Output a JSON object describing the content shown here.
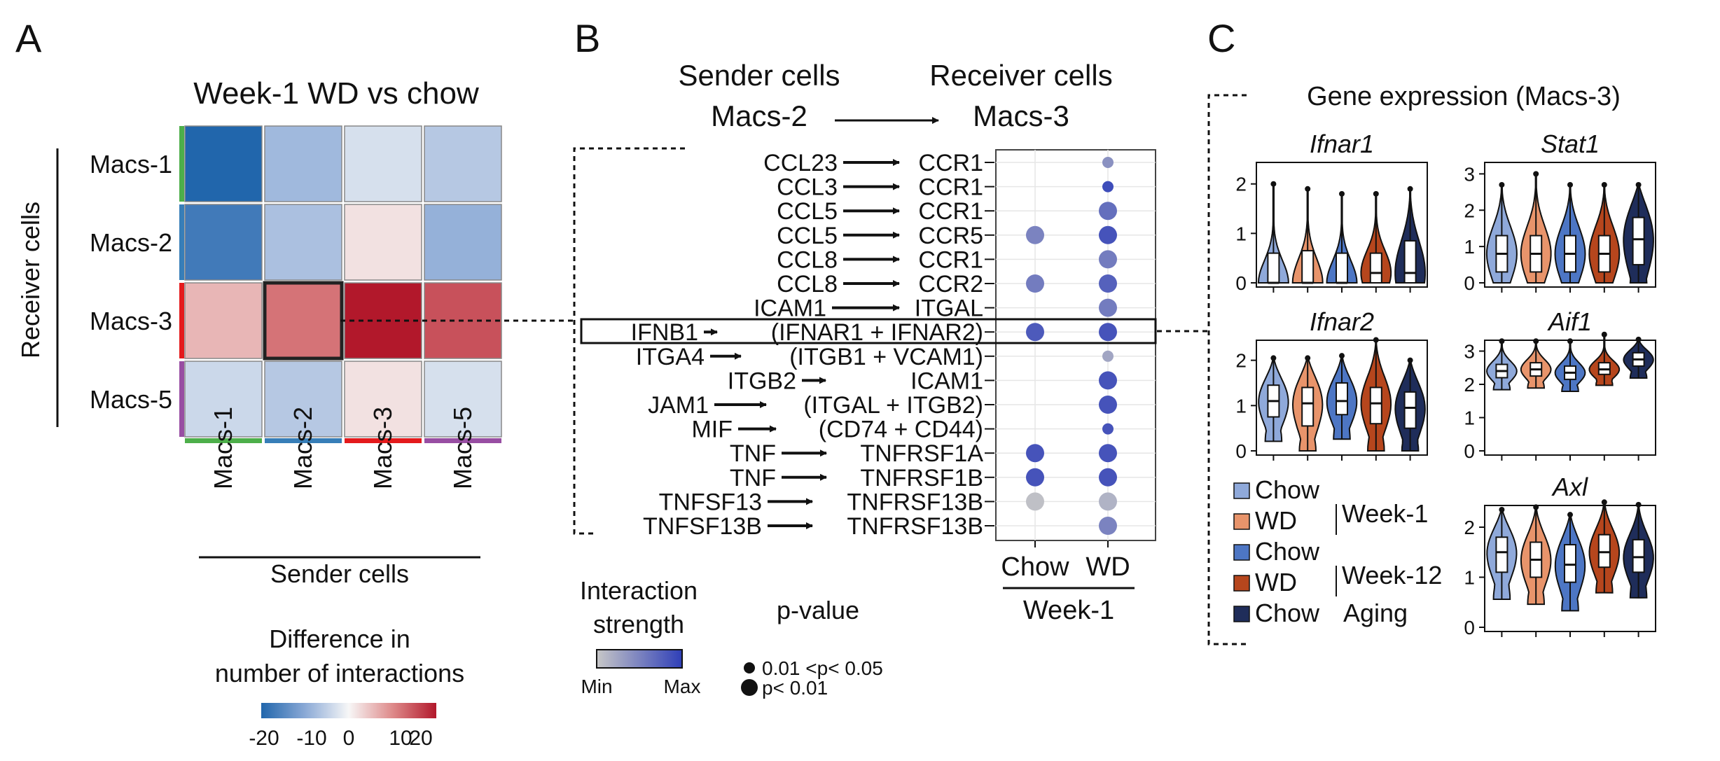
{
  "panel_labels": {
    "a": "A",
    "b": "B",
    "c": "C"
  },
  "colors": {
    "chow_wk1": "#8fa9da",
    "wd_wk1": "#e8946b",
    "chow_wk12": "#4d76c4",
    "wd_wk12": "#b6461d",
    "chow_aging": "#1f2d5a",
    "heat_neg": "#2a63ae",
    "heat_pos": "#b5182c",
    "dot_min": "#c7c7c7",
    "dot_max": "#2f3fb8"
  },
  "panel_a": {
    "title": "Week-1 WD vs chow",
    "ylabel": "Receiver cells",
    "xlabel": "Sender cells",
    "legend_title_1": "Difference in",
    "legend_title_2": "number of interactions",
    "legend_ticks": [
      "-20",
      "-10",
      "0",
      "10",
      "20"
    ],
    "rows": [
      "Macs-1",
      "Macs-2",
      "Macs-3",
      "Macs-5"
    ],
    "cols": [
      "Macs-1",
      "Macs-2",
      "Macs-3",
      "Macs-5"
    ],
    "side_colors": [
      "#4daf4a",
      "#377eb8",
      "#e41a1c",
      "#984ea3"
    ]
  },
  "panel_b": {
    "sender_header": "Sender cells",
    "receiver_header": "Receiver cells",
    "sender": "Macs-2",
    "receiver": "Macs-3",
    "x_categories": [
      "Chow",
      "WD"
    ],
    "x_group": "Week-1",
    "strength_title_1": "Interaction",
    "strength_title_2": "strength",
    "strength_min": "Min",
    "strength_max": "Max",
    "pvalue_title": "p-value",
    "pvalue_1": "0.01 <p< 0.05",
    "pvalue_2": "p< 0.01",
    "pairs": [
      {
        "ligand": "CCL23",
        "receptor": "CCR1"
      },
      {
        "ligand": "CCL3",
        "receptor": "CCR1"
      },
      {
        "ligand": "CCL5",
        "receptor": "CCR1"
      },
      {
        "ligand": "CCL5",
        "receptor": "CCR5"
      },
      {
        "ligand": "CCL8",
        "receptor": "CCR1"
      },
      {
        "ligand": "CCL8",
        "receptor": "CCR2"
      },
      {
        "ligand": "ICAM1",
        "receptor": "ITGAL"
      },
      {
        "ligand": "IFNB1",
        "receptor": "(IFNAR1 + IFNAR2)"
      },
      {
        "ligand": "ITGA4",
        "receptor": "(ITGB1 + VCAM1)"
      },
      {
        "ligand": "ITGB2",
        "receptor": "ICAM1"
      },
      {
        "ligand": "JAM1",
        "receptor": "(ITGAL + ITGB2)"
      },
      {
        "ligand": "MIF",
        "receptor": "(CD74 + CD44)"
      },
      {
        "ligand": "TNF",
        "receptor": "TNFRSF1A"
      },
      {
        "ligand": "TNF",
        "receptor": "TNFRSF1B"
      },
      {
        "ligand": "TNFSF13",
        "receptor": "TNFRSF13B"
      },
      {
        "ligand": "TNFSF13B",
        "receptor": "TNFRSF13B"
      }
    ]
  },
  "panel_c": {
    "title": "Gene expression (Macs-3)",
    "legend": [
      {
        "label": "Chow",
        "group": "Week-1"
      },
      {
        "label": "WD",
        "group": "Week-1"
      },
      {
        "label": "Chow",
        "group": "Week-12"
      },
      {
        "label": "WD",
        "group": "Week-12"
      },
      {
        "label": "Chow",
        "group": "Aging"
      }
    ]
  },
  "chart_data": [
    {
      "type": "heatmap",
      "title": "Week-1 WD vs chow",
      "xlabel": "Sender cells",
      "ylabel": "Receiver cells",
      "x": [
        "Macs-1",
        "Macs-2",
        "Macs-3",
        "Macs-5"
      ],
      "y": [
        "Macs-1",
        "Macs-2",
        "Macs-3",
        "Macs-5"
      ],
      "values": [
        [
          -20,
          -8,
          -3,
          -6
        ],
        [
          -17,
          -7,
          2,
          -9
        ],
        [
          6,
          12,
          22,
          15
        ],
        [
          -4,
          -6,
          2,
          -3
        ]
      ],
      "range": [
        -20,
        20
      ],
      "highlight": {
        "row": "Macs-3",
        "col": "Macs-2"
      }
    },
    {
      "type": "scatter",
      "subtype": "dotplot",
      "categories": [
        "Chow",
        "WD"
      ],
      "rows": [
        "CCL23 → CCR1",
        "CCL3 → CCR1",
        "CCL5 → CCR1",
        "CCL5 → CCR5",
        "CCL8 → CCR1",
        "CCL8 → CCR2",
        "ICAM1 → ITGAL",
        "IFNB1 → (IFNAR1 + IFNAR2)",
        "ITGA4 → (ITGB1 + VCAM1)",
        "ITGB2 → ICAM1",
        "JAM1 → (ITGAL + ITGB2)",
        "MIF → (CD74 + CD44)",
        "TNF → TNFRSF1A",
        "TNF → TNFRSF1B",
        "TNFSF13 → TNFRSF13B",
        "TNFSF13B → TNFRSF13B"
      ],
      "series": [
        {
          "name": "Chow",
          "strength": [
            null,
            null,
            null,
            0.5,
            null,
            0.55,
            null,
            0.8,
            null,
            null,
            null,
            null,
            0.85,
            0.85,
            0.05,
            null
          ],
          "significance": [
            null,
            null,
            null,
            "p<0.01",
            null,
            "p<0.01",
            null,
            "p<0.01",
            null,
            null,
            null,
            null,
            "p<0.01",
            "p<0.01",
            "p<0.01",
            null
          ]
        },
        {
          "name": "WD",
          "strength": [
            0.4,
            0.9,
            0.65,
            0.85,
            0.55,
            0.75,
            0.55,
            0.85,
            0.25,
            0.85,
            0.85,
            0.85,
            0.85,
            0.85,
            0.15,
            0.5
          ],
          "significance": [
            "0.01<p<0.05",
            "0.01<p<0.05",
            "p<0.01",
            "p<0.01",
            "p<0.01",
            "p<0.01",
            "p<0.01",
            "p<0.01",
            "0.01<p<0.05",
            "p<0.01",
            "p<0.01",
            "0.01<p<0.05",
            "p<0.01",
            "p<0.01",
            "p<0.01",
            "p<0.01"
          ]
        }
      ],
      "highlight_row": "IFNB1 → (IFNAR1 + IFNAR2)"
    },
    {
      "type": "violin",
      "groups": [
        "Chow Week-1",
        "WD Week-1",
        "Chow Week-12",
        "WD Week-12",
        "Chow Aging"
      ],
      "genes": [
        {
          "name": "Ifnar1",
          "ylim": [
            0,
            2
          ],
          "yticks": [
            "0",
            "1",
            "2"
          ],
          "medians": [
            0,
            0,
            0,
            0.2,
            0.2
          ],
          "q1": [
            0,
            0,
            0,
            0,
            0
          ],
          "q3": [
            0.6,
            0.65,
            0.6,
            0.6,
            0.85
          ],
          "max": [
            2.0,
            1.9,
            1.8,
            1.8,
            1.9
          ]
        },
        {
          "name": "Stat1",
          "ylim": [
            0,
            3
          ],
          "yticks": [
            "0",
            "1",
            "2",
            "3"
          ],
          "medians": [
            0.8,
            0.8,
            0.8,
            0.8,
            1.2
          ],
          "q1": [
            0.3,
            0.3,
            0.3,
            0.3,
            0.5
          ],
          "q3": [
            1.3,
            1.3,
            1.3,
            1.3,
            1.8
          ],
          "max": [
            2.7,
            3.0,
            2.7,
            2.7,
            2.7
          ]
        },
        {
          "name": "Ifnar2",
          "ylim": [
            0,
            2
          ],
          "yticks": [
            "0",
            "1",
            "2"
          ],
          "medians": [
            1.1,
            1.05,
            1.1,
            1.05,
            0.95
          ],
          "q1": [
            0.75,
            0.55,
            0.8,
            0.6,
            0.5
          ],
          "q3": [
            1.45,
            1.4,
            1.5,
            1.4,
            1.3
          ],
          "max": [
            2.05,
            2.05,
            2.1,
            2.45,
            2.0
          ]
        },
        {
          "name": "Aif1",
          "ylim": [
            0,
            3
          ],
          "yticks": [
            "0",
            "1",
            "2",
            "3"
          ],
          "medians": [
            2.4,
            2.45,
            2.35,
            2.45,
            2.75
          ],
          "q1": [
            2.2,
            2.25,
            2.15,
            2.3,
            2.55
          ],
          "q3": [
            2.6,
            2.65,
            2.55,
            2.65,
            2.95
          ],
          "max": [
            3.3,
            3.3,
            3.3,
            3.5,
            3.35
          ]
        },
        {
          "name": "Axl",
          "ylim": [
            0,
            2
          ],
          "yticks": [
            "0",
            "1",
            "2"
          ],
          "medians": [
            1.5,
            1.35,
            1.25,
            1.5,
            1.4
          ],
          "q1": [
            1.1,
            1.0,
            0.9,
            1.2,
            1.1
          ],
          "q3": [
            1.8,
            1.7,
            1.65,
            1.85,
            1.75
          ],
          "max": [
            2.35,
            2.4,
            2.25,
            2.5,
            2.45
          ]
        }
      ]
    }
  ]
}
